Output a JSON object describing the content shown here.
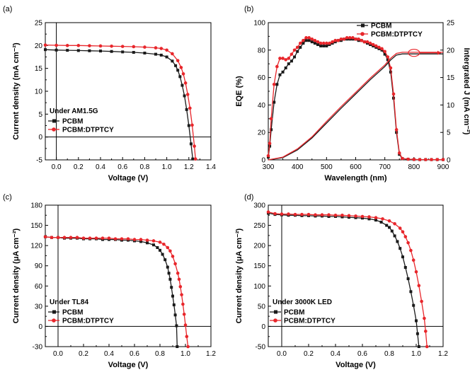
{
  "colors": {
    "pcbm": "#1a1a1a",
    "dtptcy": "#e8262b"
  },
  "chart_data": [
    {
      "panel": "(a)",
      "type": "line",
      "xlabel": "Voltage (V)",
      "ylabel": "Current density (mA cm⁻²)",
      "xlim": [
        -0.1,
        1.4
      ],
      "ylim": [
        -5,
        25
      ],
      "xticks": [
        0.0,
        0.2,
        0.4,
        0.6,
        0.8,
        1.0,
        1.2,
        1.4
      ],
      "xtick_labels": [
        "0.0",
        "0.2",
        "0.4",
        "0.6",
        "0.8",
        "1.0",
        "1.2",
        "1.4"
      ],
      "yticks": [
        -5,
        0,
        5,
        10,
        15,
        20,
        25
      ],
      "ytick_labels": [
        "-5",
        "0",
        "5",
        "10",
        "15",
        "20",
        "25"
      ],
      "condition": "Under AM1.5G",
      "zero_lines": true,
      "series": [
        {
          "name": "PCBM",
          "color": "pcbm",
          "marker": "square",
          "x": [
            -0.1,
            0.0,
            0.1,
            0.2,
            0.3,
            0.4,
            0.5,
            0.6,
            0.7,
            0.8,
            0.9,
            0.95,
            1.0,
            1.05,
            1.08,
            1.1,
            1.12,
            1.14,
            1.16,
            1.18,
            1.2,
            1.22,
            1.235
          ],
          "y": [
            19.1,
            19.0,
            18.95,
            18.9,
            18.85,
            18.8,
            18.7,
            18.6,
            18.5,
            18.35,
            18.1,
            17.9,
            17.5,
            16.6,
            15.6,
            14.6,
            13.2,
            11.3,
            9.0,
            6.0,
            2.5,
            -1.5,
            -4.8
          ]
        },
        {
          "name": "PCBM:DTPTCY",
          "color": "dtptcy",
          "marker": "circle",
          "x": [
            -0.1,
            0.0,
            0.1,
            0.2,
            0.3,
            0.4,
            0.5,
            0.6,
            0.7,
            0.8,
            0.9,
            0.95,
            1.0,
            1.05,
            1.1,
            1.13,
            1.15,
            1.17,
            1.19,
            1.21,
            1.23,
            1.25,
            1.26
          ],
          "y": [
            20.1,
            20.05,
            20.0,
            20.0,
            19.95,
            19.9,
            19.85,
            19.8,
            19.75,
            19.65,
            19.5,
            19.35,
            19.0,
            18.2,
            16.7,
            15.2,
            13.8,
            11.8,
            9.3,
            6.3,
            2.6,
            -2.0,
            -4.8
          ]
        }
      ]
    },
    {
      "panel": "(b)",
      "type": "line",
      "xlabel": "Wavelength (nm)",
      "ylabel": "EQE (%)",
      "ylabel_right": "Intergrated J (mA cm⁻²)",
      "xlim": [
        300,
        900
      ],
      "ylim": [
        0,
        100
      ],
      "ylim_right": [
        0,
        25
      ],
      "xticks": [
        300,
        400,
        500,
        600,
        700,
        800,
        900
      ],
      "xtick_labels": [
        "300",
        "400",
        "500",
        "600",
        "700",
        "800",
        "900"
      ],
      "yticks": [
        0,
        20,
        40,
        60,
        80,
        100
      ],
      "ytick_labels": [
        "0",
        "20",
        "40",
        "60",
        "80",
        "100"
      ],
      "yticks_right": [
        0,
        5,
        10,
        15,
        20,
        25
      ],
      "ytick_labels_right": [
        "0",
        "5",
        "10",
        "15",
        "20",
        "25"
      ],
      "legend_position": "top-right",
      "series": [
        {
          "name": "PCBM",
          "color": "pcbm",
          "marker": "square",
          "axis": "left",
          "x": [
            300,
            305,
            310,
            320,
            330,
            340,
            350,
            360,
            370,
            380,
            390,
            400,
            410,
            420,
            430,
            440,
            450,
            460,
            470,
            480,
            490,
            500,
            510,
            520,
            530,
            540,
            550,
            560,
            570,
            580,
            590,
            600,
            610,
            620,
            630,
            640,
            650,
            660,
            670,
            680,
            690,
            700,
            710,
            720,
            730,
            740,
            750,
            760,
            780,
            800,
            820,
            840,
            860,
            880,
            900
          ],
          "y": [
            2,
            10,
            22,
            42,
            55,
            62,
            64,
            67,
            70,
            72,
            75,
            79,
            82,
            85,
            87,
            87,
            86,
            85,
            84,
            83,
            83,
            83,
            84,
            85,
            86,
            87,
            87,
            88,
            88,
            88,
            88,
            88,
            87,
            87,
            86,
            85,
            84,
            83,
            82,
            81,
            80,
            77,
            73,
            64,
            45,
            20,
            4,
            1,
            0.5,
            0.3,
            0.2,
            0.2,
            0.2,
            0.2,
            0.2
          ]
        },
        {
          "name": "PCBM:DTPTCY",
          "color": "dtptcy",
          "marker": "circle",
          "axis": "left",
          "x": [
            300,
            305,
            310,
            320,
            330,
            340,
            350,
            360,
            370,
            380,
            390,
            400,
            410,
            420,
            430,
            440,
            450,
            460,
            470,
            480,
            490,
            500,
            510,
            520,
            530,
            540,
            550,
            560,
            570,
            580,
            590,
            600,
            610,
            620,
            630,
            640,
            650,
            660,
            670,
            680,
            690,
            700,
            710,
            720,
            730,
            740,
            750,
            760,
            780,
            800,
            820,
            840,
            860,
            880,
            900
          ],
          "y": [
            3,
            12,
            30,
            55,
            68,
            74,
            74,
            73,
            74,
            77,
            80,
            82,
            85,
            87,
            89,
            89,
            88,
            87,
            86,
            85,
            85,
            85,
            85,
            86,
            87,
            87,
            88,
            88,
            89,
            89,
            89,
            88,
            88,
            87,
            86,
            86,
            85,
            84,
            83,
            82,
            81,
            79,
            75,
            67,
            48,
            22,
            5,
            1,
            0.5,
            0.3,
            0.2,
            0.2,
            0.2,
            0.2,
            0.2
          ]
        },
        {
          "name": "PCBM (integrated J)",
          "color": "pcbm",
          "marker": "none",
          "axis": "right",
          "x": [
            300,
            350,
            400,
            450,
            500,
            550,
            600,
            650,
            700,
            720,
            740,
            760,
            800,
            900
          ],
          "y": [
            0,
            0.4,
            1.8,
            4.0,
            6.7,
            9.4,
            12.0,
            14.6,
            17.0,
            18.2,
            19.1,
            19.3,
            19.3,
            19.3
          ]
        },
        {
          "name": "PCBM:DTPTCY (integrated J)",
          "color": "dtptcy",
          "marker": "none",
          "axis": "right",
          "x": [
            300,
            350,
            400,
            450,
            500,
            550,
            600,
            650,
            700,
            720,
            740,
            760,
            800,
            900
          ],
          "y": [
            0,
            0.5,
            2.0,
            4.2,
            7.0,
            9.7,
            12.3,
            14.9,
            17.3,
            18.5,
            19.4,
            19.6,
            19.6,
            19.6
          ]
        }
      ]
    },
    {
      "panel": "(c)",
      "type": "line",
      "xlabel": "Voltage (V)",
      "ylabel": "Current density (μA cm⁻²)",
      "xlim": [
        -0.1,
        1.2
      ],
      "ylim": [
        -30,
        180
      ],
      "xticks": [
        0.0,
        0.2,
        0.4,
        0.6,
        0.8,
        1.0,
        1.2
      ],
      "xtick_labels": [
        "0.0",
        "0.2",
        "0.4",
        "0.6",
        "0.8",
        "1.0",
        "1.2"
      ],
      "yticks": [
        -30,
        0,
        30,
        60,
        90,
        120,
        150,
        180
      ],
      "ytick_labels": [
        "-30",
        "0",
        "30",
        "60",
        "90",
        "120",
        "150",
        "180"
      ],
      "condition": "Under TL84",
      "zero_lines": true,
      "series": [
        {
          "name": "PCBM",
          "color": "pcbm",
          "marker": "square",
          "x": [
            -0.1,
            -0.05,
            0.0,
            0.05,
            0.1,
            0.15,
            0.2,
            0.25,
            0.3,
            0.35,
            0.4,
            0.45,
            0.5,
            0.55,
            0.6,
            0.65,
            0.7,
            0.75,
            0.78,
            0.8,
            0.82,
            0.84,
            0.86,
            0.87,
            0.88,
            0.89,
            0.9,
            0.91,
            0.92,
            0.93,
            0.935
          ],
          "y": [
            133,
            132,
            132,
            131,
            131,
            131,
            130,
            130,
            130,
            129,
            129,
            129,
            128,
            128,
            127,
            126,
            124,
            121,
            117,
            113,
            107,
            99,
            88,
            79,
            70,
            58,
            45,
            32,
            17,
            1,
            -30
          ]
        },
        {
          "name": "PCBM:DTPTCY",
          "color": "dtptcy",
          "marker": "circle",
          "x": [
            -0.1,
            -0.05,
            0.0,
            0.05,
            0.1,
            0.15,
            0.2,
            0.25,
            0.3,
            0.35,
            0.4,
            0.45,
            0.5,
            0.55,
            0.6,
            0.65,
            0.7,
            0.75,
            0.8,
            0.83,
            0.86,
            0.88,
            0.9,
            0.92,
            0.94,
            0.95,
            0.96,
            0.97,
            0.98,
            0.99,
            1.0,
            1.01,
            1.02
          ],
          "y": [
            133,
            132,
            132,
            132,
            132,
            132,
            131,
            131,
            131,
            131,
            131,
            130,
            130,
            130,
            129,
            129,
            128,
            127,
            125,
            122,
            117,
            112,
            104,
            93,
            79,
            70,
            59,
            47,
            33,
            18,
            2,
            -15,
            -30
          ]
        }
      ]
    },
    {
      "panel": "(d)",
      "type": "line",
      "xlabel": "Voltage (V)",
      "ylabel": "Current density (μA cm⁻²)",
      "xlim": [
        -0.1,
        1.2
      ],
      "ylim": [
        -50,
        300
      ],
      "xticks": [
        0.0,
        0.2,
        0.4,
        0.6,
        0.8,
        1.0,
        1.2
      ],
      "xtick_labels": [
        "0.0",
        "0.2",
        "0.4",
        "0.6",
        "0.8",
        "1.0",
        "1.2"
      ],
      "yticks": [
        -50,
        0,
        50,
        100,
        150,
        200,
        250,
        300
      ],
      "ytick_labels": [
        "-50",
        "0",
        "50",
        "100",
        "150",
        "200",
        "250",
        "300"
      ],
      "condition": "Under 3000K LED",
      "zero_lines": true,
      "series": [
        {
          "name": "PCBM",
          "color": "pcbm",
          "marker": "square",
          "x": [
            -0.1,
            -0.05,
            0.0,
            0.05,
            0.1,
            0.15,
            0.2,
            0.25,
            0.3,
            0.35,
            0.4,
            0.45,
            0.5,
            0.55,
            0.6,
            0.65,
            0.7,
            0.74,
            0.78,
            0.8,
            0.82,
            0.84,
            0.86,
            0.88,
            0.9,
            0.92,
            0.94,
            0.96,
            0.98,
            1.0,
            1.01,
            1.02
          ],
          "y": [
            280,
            277,
            276,
            275,
            275,
            274,
            274,
            273,
            273,
            272,
            272,
            271,
            270,
            269,
            268,
            266,
            263,
            258,
            250,
            245,
            236,
            224,
            210,
            193,
            172,
            146,
            118,
            86,
            52,
            14,
            -18,
            -50
          ]
        },
        {
          "name": "PCBM:DTPTCY",
          "color": "dtptcy",
          "marker": "circle",
          "x": [
            -0.1,
            -0.05,
            0.0,
            0.05,
            0.1,
            0.15,
            0.2,
            0.25,
            0.3,
            0.35,
            0.4,
            0.45,
            0.5,
            0.55,
            0.6,
            0.65,
            0.7,
            0.75,
            0.8,
            0.84,
            0.88,
            0.9,
            0.92,
            0.94,
            0.96,
            0.98,
            1.0,
            1.02,
            1.04,
            1.06,
            1.07,
            1.08
          ],
          "y": [
            283,
            279,
            278,
            278,
            277,
            277,
            277,
            276,
            276,
            276,
            275,
            275,
            274,
            273,
            272,
            271,
            269,
            266,
            261,
            254,
            243,
            234,
            222,
            207,
            188,
            164,
            135,
            101,
            62,
            20,
            -12,
            -50
          ]
        }
      ]
    }
  ]
}
